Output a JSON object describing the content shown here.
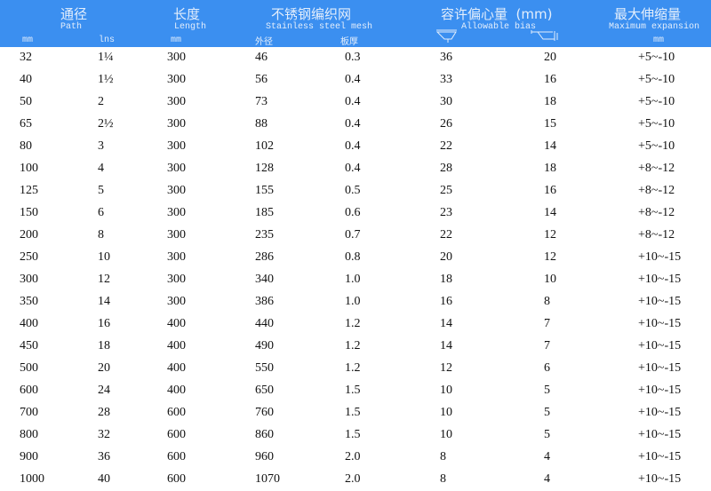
{
  "header": {
    "path_cn": "通径",
    "path_en": "Path",
    "path_mm": "mm",
    "path_ins": "lns",
    "length_cn": "长度",
    "length_en": "Length",
    "length_mm": "mm",
    "mesh_cn": "不锈钢编织网",
    "mesh_en": "Stainless steel mesh",
    "mesh_od": "外径",
    "mesh_thick": "板厚",
    "bias_cn": "容许偏心量  (mm)",
    "bias_en": "Allowable bias",
    "exp_cn": "最大伸缩量",
    "exp_en": "Maximum expansion",
    "exp_mm": "mm",
    "icons": [
      "angular-offset-icon",
      "lateral-offset-icon"
    ],
    "color": "#3b8ff0"
  },
  "rows": [
    [
      "32",
      "1¼",
      "300",
      "46",
      "0.3",
      "36",
      "20",
      "+5~-10"
    ],
    [
      "40",
      "1½",
      "300",
      "56",
      "0.4",
      "33",
      "16",
      "+5~-10"
    ],
    [
      "50",
      "2",
      "300",
      "73",
      "0.4",
      "30",
      "18",
      "+5~-10"
    ],
    [
      "65",
      "2½",
      "300",
      "88",
      "0.4",
      "26",
      "15",
      "+5~-10"
    ],
    [
      "80",
      "3",
      "300",
      "102",
      "0.4",
      "22",
      "14",
      "+5~-10"
    ],
    [
      "100",
      "4",
      "300",
      "128",
      "0.4",
      "28",
      "18",
      "+8~-12"
    ],
    [
      "125",
      "5",
      "300",
      "155",
      "0.5",
      "25",
      "16",
      "+8~-12"
    ],
    [
      "150",
      "6",
      "300",
      "185",
      "0.6",
      "23",
      "14",
      "+8~-12"
    ],
    [
      "200",
      "8",
      "300",
      "235",
      "0.7",
      "22",
      "12",
      "+8~-12"
    ],
    [
      "250",
      "10",
      "300",
      "286",
      "0.8",
      "20",
      "12",
      "+10~-15"
    ],
    [
      "300",
      "12",
      "300",
      "340",
      "1.0",
      "18",
      "10",
      "+10~-15"
    ],
    [
      "350",
      "14",
      "300",
      "386",
      "1.0",
      "16",
      "8",
      "+10~-15"
    ],
    [
      "400",
      "16",
      "400",
      "440",
      "1.2",
      "14",
      "7",
      "+10~-15"
    ],
    [
      "450",
      "18",
      "400",
      "490",
      "1.2",
      "14",
      "7",
      "+10~-15"
    ],
    [
      "500",
      "20",
      "400",
      "550",
      "1.2",
      "12",
      "6",
      "+10~-15"
    ],
    [
      "600",
      "24",
      "400",
      "650",
      "1.5",
      "10",
      "5",
      "+10~-15"
    ],
    [
      "700",
      "28",
      "600",
      "760",
      "1.5",
      "10",
      "5",
      "+10~-15"
    ],
    [
      "800",
      "32",
      "600",
      "860",
      "1.5",
      "10",
      "5",
      "+10~-15"
    ],
    [
      "900",
      "36",
      "600",
      "960",
      "2.0",
      "8",
      "4",
      "+10~-15"
    ],
    [
      "1000",
      "40",
      "600",
      "1070",
      "2.0",
      "8",
      "4",
      "+10~-15"
    ]
  ]
}
